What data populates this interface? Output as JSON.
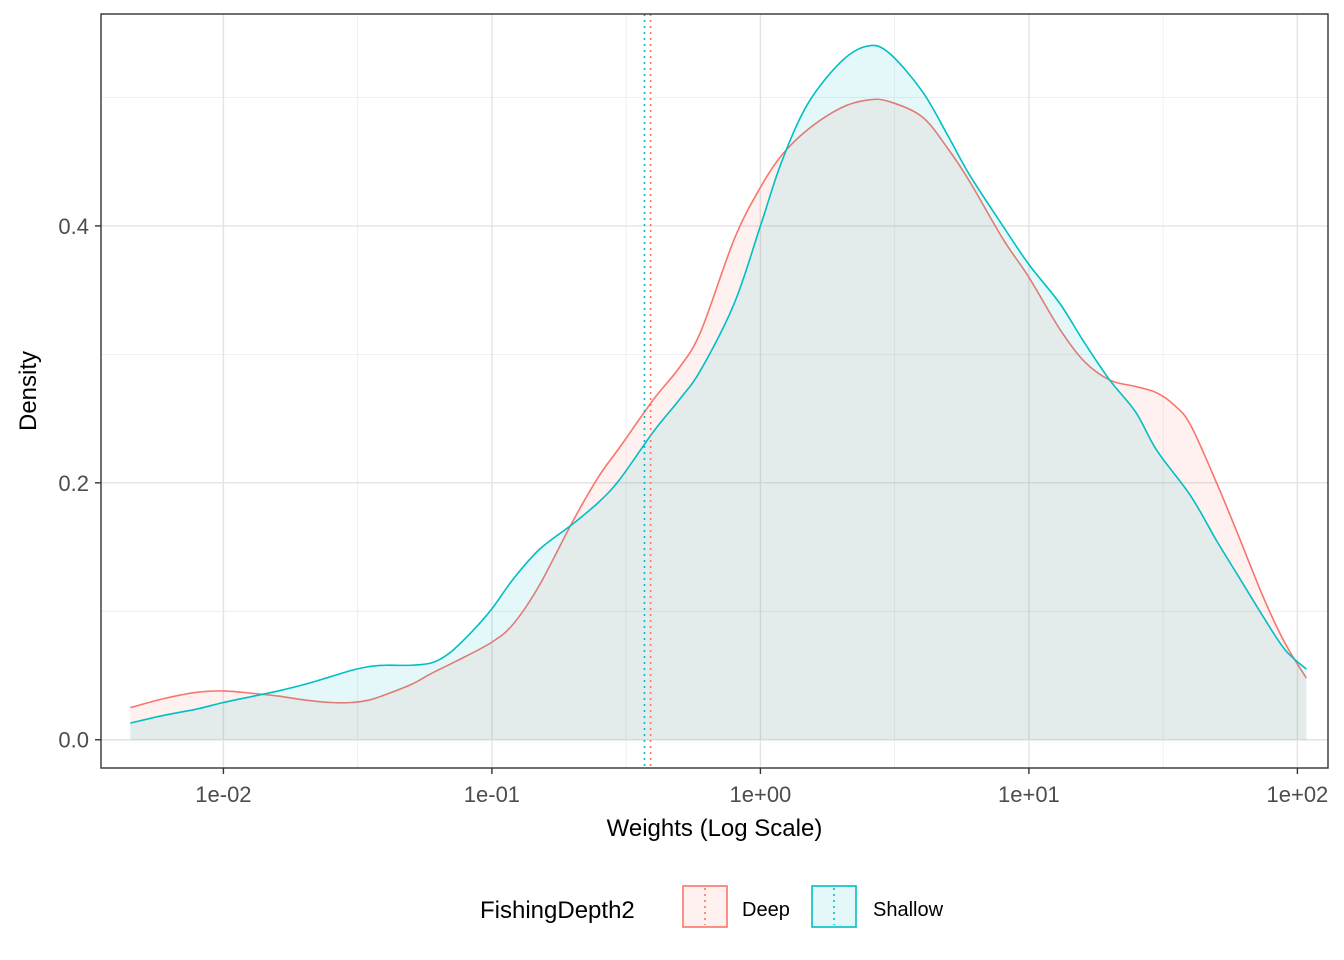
{
  "chart_data": {
    "type": "area",
    "title": "",
    "xlabel": "Weights (Log Scale)",
    "ylabel": "Density",
    "x_scale": "log10",
    "xlim": [
      0.0035,
      130
    ],
    "ylim": [
      -0.022,
      0.565
    ],
    "x_ticks": [
      0.01,
      0.1,
      1,
      10,
      100
    ],
    "x_tick_labels": [
      "1e-02",
      "1e-01",
      "1e+00",
      "1e+01",
      "1e+02"
    ],
    "y_ticks": [
      0.0,
      0.2,
      0.4
    ],
    "y_tick_labels": [
      "0.0",
      "0.2",
      "0.4"
    ],
    "grid": true,
    "legend": {
      "title": "FishingDepth2",
      "position": "bottom",
      "entries": [
        "Deep",
        "Shallow"
      ]
    },
    "series": [
      {
        "name": "Deep",
        "color": "#F8766D",
        "fill": "#F8766D",
        "fill_opacity": 0.1,
        "median_line": 0.39,
        "points": [
          [
            0.0045,
            0.025
          ],
          [
            0.006,
            0.032
          ],
          [
            0.008,
            0.037
          ],
          [
            0.01,
            0.038
          ],
          [
            0.013,
            0.036
          ],
          [
            0.016,
            0.034
          ],
          [
            0.02,
            0.031
          ],
          [
            0.025,
            0.029
          ],
          [
            0.03,
            0.029
          ],
          [
            0.035,
            0.031
          ],
          [
            0.04,
            0.035
          ],
          [
            0.05,
            0.043
          ],
          [
            0.06,
            0.052
          ],
          [
            0.075,
            0.062
          ],
          [
            0.1,
            0.076
          ],
          [
            0.12,
            0.09
          ],
          [
            0.15,
            0.12
          ],
          [
            0.2,
            0.17
          ],
          [
            0.25,
            0.205
          ],
          [
            0.3,
            0.228
          ],
          [
            0.4,
            0.265
          ],
          [
            0.5,
            0.29
          ],
          [
            0.6,
            0.318
          ],
          [
            0.8,
            0.39
          ],
          [
            1.0,
            0.43
          ],
          [
            1.2,
            0.455
          ],
          [
            1.5,
            0.475
          ],
          [
            2.0,
            0.492
          ],
          [
            2.5,
            0.498
          ],
          [
            3.0,
            0.497
          ],
          [
            4.0,
            0.485
          ],
          [
            5.0,
            0.46
          ],
          [
            6.0,
            0.435
          ],
          [
            8.0,
            0.39
          ],
          [
            10.0,
            0.36
          ],
          [
            13.0,
            0.32
          ],
          [
            16.0,
            0.295
          ],
          [
            20.0,
            0.28
          ],
          [
            25.0,
            0.275
          ],
          [
            30.0,
            0.27
          ],
          [
            35.0,
            0.26
          ],
          [
            40.0,
            0.245
          ],
          [
            50.0,
            0.2
          ],
          [
            60.0,
            0.16
          ],
          [
            75.0,
            0.11
          ],
          [
            90.0,
            0.075
          ],
          [
            108.0,
            0.048
          ]
        ]
      },
      {
        "name": "Shallow",
        "color": "#00BFC4",
        "fill": "#00BFC4",
        "fill_opacity": 0.1,
        "median_line": 0.37,
        "points": [
          [
            0.0045,
            0.013
          ],
          [
            0.006,
            0.019
          ],
          [
            0.008,
            0.024
          ],
          [
            0.01,
            0.029
          ],
          [
            0.013,
            0.034
          ],
          [
            0.016,
            0.038
          ],
          [
            0.02,
            0.043
          ],
          [
            0.025,
            0.049
          ],
          [
            0.03,
            0.054
          ],
          [
            0.035,
            0.057
          ],
          [
            0.04,
            0.058
          ],
          [
            0.05,
            0.058
          ],
          [
            0.06,
            0.06
          ],
          [
            0.07,
            0.068
          ],
          [
            0.085,
            0.085
          ],
          [
            0.1,
            0.102
          ],
          [
            0.12,
            0.125
          ],
          [
            0.15,
            0.148
          ],
          [
            0.2,
            0.168
          ],
          [
            0.25,
            0.185
          ],
          [
            0.3,
            0.203
          ],
          [
            0.4,
            0.24
          ],
          [
            0.5,
            0.265
          ],
          [
            0.6,
            0.288
          ],
          [
            0.8,
            0.34
          ],
          [
            1.0,
            0.4
          ],
          [
            1.2,
            0.45
          ],
          [
            1.5,
            0.495
          ],
          [
            2.0,
            0.528
          ],
          [
            2.5,
            0.54
          ],
          [
            3.0,
            0.535
          ],
          [
            4.0,
            0.505
          ],
          [
            5.0,
            0.47
          ],
          [
            6.0,
            0.44
          ],
          [
            8.0,
            0.4
          ],
          [
            10.0,
            0.37
          ],
          [
            13.0,
            0.34
          ],
          [
            16.0,
            0.31
          ],
          [
            20.0,
            0.28
          ],
          [
            25.0,
            0.255
          ],
          [
            30.0,
            0.225
          ],
          [
            40.0,
            0.19
          ],
          [
            50.0,
            0.155
          ],
          [
            60.0,
            0.128
          ],
          [
            75.0,
            0.095
          ],
          [
            90.0,
            0.07
          ],
          [
            108.0,
            0.055
          ]
        ]
      }
    ]
  }
}
